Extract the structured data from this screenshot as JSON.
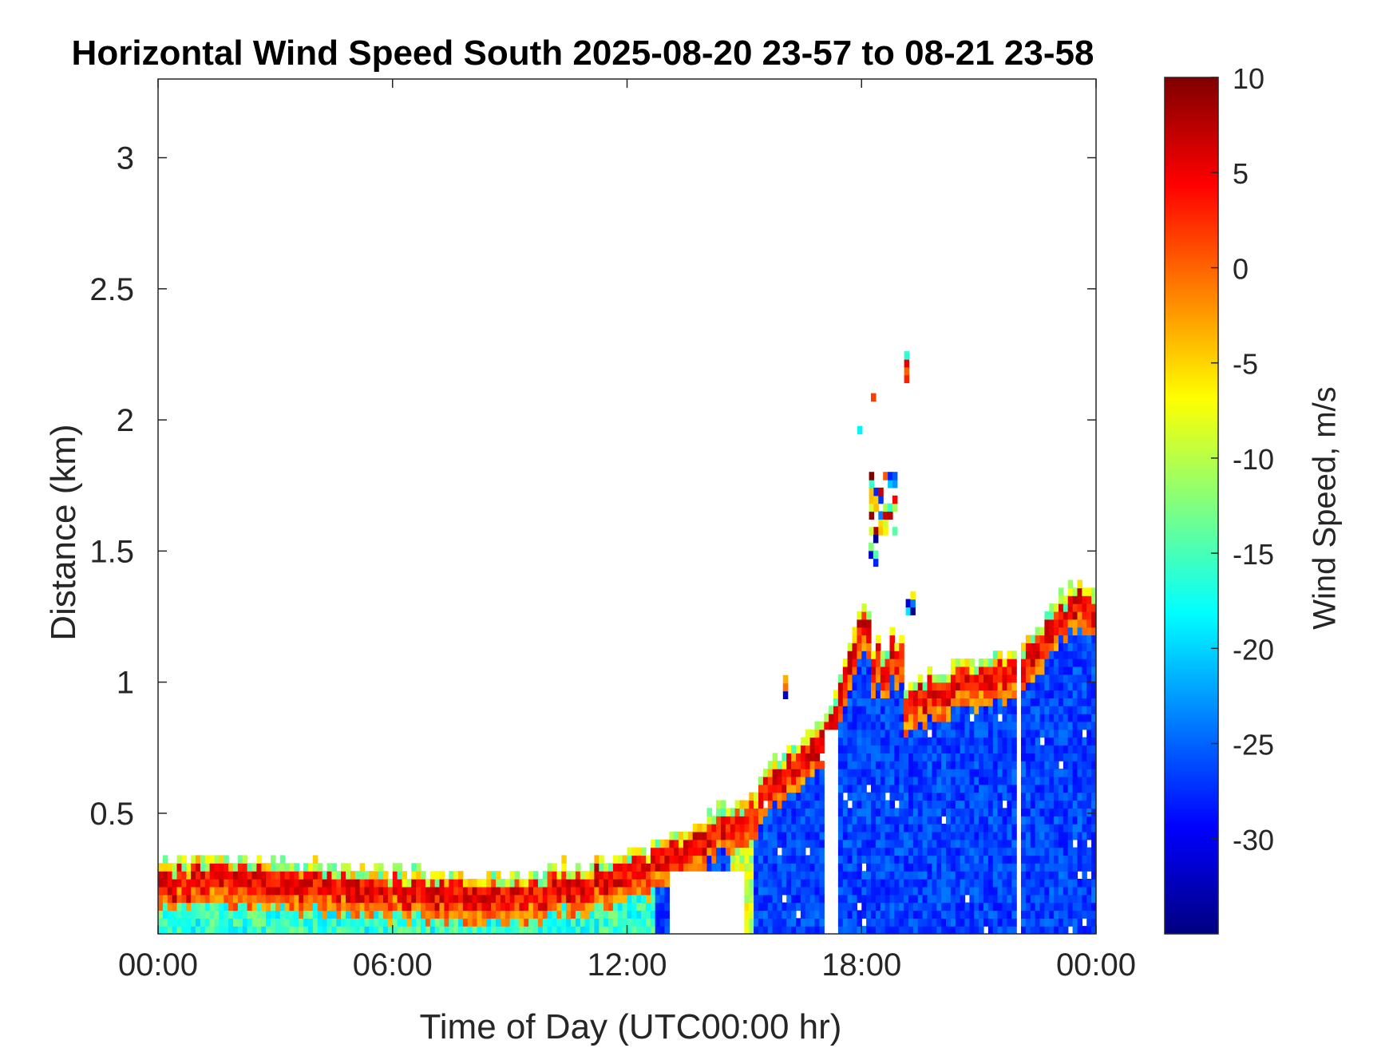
{
  "chart_data": {
    "type": "heatmap",
    "title": "Horizontal Wind Speed South 2025-08-20 23-57 to 08-21 23-58",
    "xlabel": "Time of Day (UTC00:00 hr)",
    "ylabel": "Distance (km)",
    "xlim": [
      0,
      24
    ],
    "ylim": [
      0.04,
      3.3
    ],
    "x_ticks": [
      0,
      6,
      12,
      18,
      24
    ],
    "x_tick_labels": [
      "00:00",
      "06:00",
      "12:00",
      "18:00",
      "00:00"
    ],
    "y_ticks": [
      0.5,
      1,
      1.5,
      2,
      2.5,
      3
    ],
    "y_tick_labels": [
      "0.5",
      "1",
      "1.5",
      "2",
      "2.5",
      "3"
    ],
    "colorbar": {
      "label": "Wind Speed, m/s",
      "range": [
        -35,
        10
      ],
      "ticks": [
        10,
        5,
        0,
        -5,
        -10,
        -15,
        -20,
        -25,
        -30
      ],
      "tick_labels": [
        "10",
        "5",
        "0",
        "-5",
        "-10",
        "-15",
        "-20",
        "-25",
        "-30"
      ],
      "colormap": "jet"
    },
    "boundary_layer_top_km": [
      [
        0,
        0.3
      ],
      [
        1.5,
        0.32
      ],
      [
        3,
        0.3
      ],
      [
        5,
        0.28
      ],
      [
        7,
        0.26
      ],
      [
        9,
        0.25
      ],
      [
        10,
        0.28
      ],
      [
        11.5,
        0.31
      ],
      [
        12.5,
        0.36
      ],
      [
        13.5,
        0.44
      ],
      [
        14.5,
        0.52
      ],
      [
        15.2,
        0.56
      ],
      [
        15.5,
        0.66
      ],
      [
        16.5,
        0.8
      ],
      [
        17.1,
        0.86
      ],
      [
        17.6,
        1.1
      ],
      [
        18,
        1.3
      ],
      [
        18.4,
        1.15
      ],
      [
        19,
        0.98
      ],
      [
        20,
        1.04
      ],
      [
        21,
        1.08
      ],
      [
        22,
        1.12
      ],
      [
        23,
        1.3
      ],
      [
        23.5,
        1.38
      ],
      [
        24,
        1.35
      ]
    ],
    "upper_patches": [
      {
        "t": 18.6,
        "z": 1.7,
        "note": ""
      },
      {
        "t": 19.15,
        "z": 2.2,
        "note": ""
      }
    ]
  }
}
